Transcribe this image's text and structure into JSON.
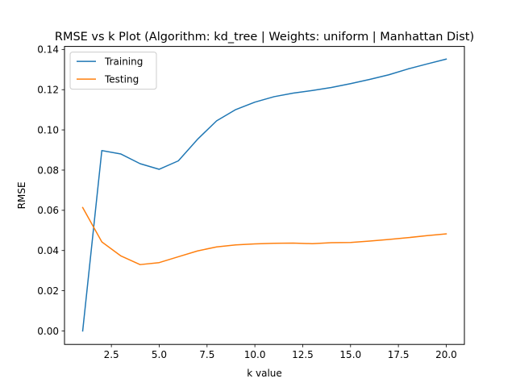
{
  "chart_data": {
    "type": "line",
    "title": "RMSE vs k Plot (Algorithm: kd_tree | Weights: uniform | Manhattan Dist)",
    "xlabel": "k value",
    "ylabel": "RMSE",
    "xlim": [
      0.05,
      20.95
    ],
    "ylim": [
      -0.0067,
      0.1415
    ],
    "x_ticks": [
      "2.5",
      "5.0",
      "7.5",
      "10.0",
      "12.5",
      "15.0",
      "17.5",
      "20.0"
    ],
    "x_tick_values": [
      2.5,
      5.0,
      7.5,
      10.0,
      12.5,
      15.0,
      17.5,
      20.0
    ],
    "y_ticks": [
      "0.00",
      "0.02",
      "0.04",
      "0.06",
      "0.08",
      "0.10",
      "0.12",
      "0.14"
    ],
    "y_tick_values": [
      0.0,
      0.02,
      0.04,
      0.06,
      0.08,
      0.1,
      0.12,
      0.14
    ],
    "grid": false,
    "legend_position": "top-left",
    "x": [
      1,
      2,
      3,
      4,
      5,
      6,
      7,
      8,
      9,
      10,
      11,
      12,
      13,
      14,
      15,
      16,
      17,
      18,
      19,
      20
    ],
    "series": [
      {
        "name": "Training",
        "color": "#1f77b4",
        "values": [
          0.0,
          0.0897,
          0.088,
          0.0832,
          0.0804,
          0.0846,
          0.0953,
          0.1045,
          0.1101,
          0.1138,
          0.1165,
          0.1183,
          0.1196,
          0.1211,
          0.123,
          0.1251,
          0.1274,
          0.1303,
          0.1328,
          0.1352
        ]
      },
      {
        "name": "Testing",
        "color": "#ff7f0e",
        "values": [
          0.0614,
          0.0443,
          0.0373,
          0.033,
          0.034,
          0.0369,
          0.0398,
          0.0418,
          0.0428,
          0.0433,
          0.0436,
          0.0437,
          0.0434,
          0.0439,
          0.044,
          0.0447,
          0.0455,
          0.0464,
          0.0474,
          0.0483
        ]
      }
    ]
  }
}
